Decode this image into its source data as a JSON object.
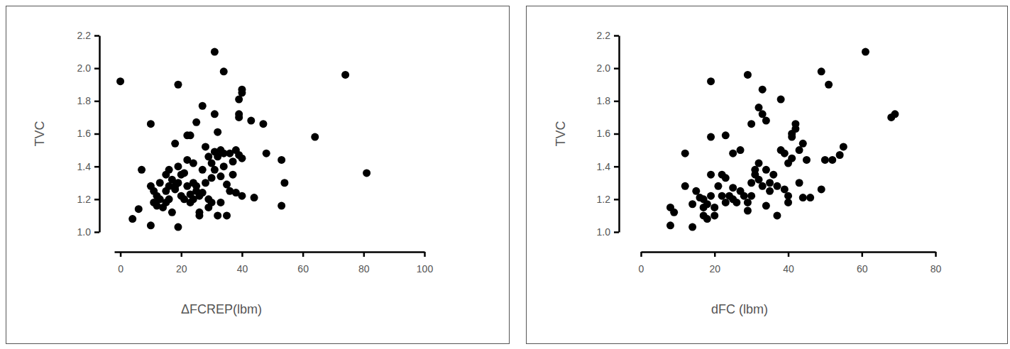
{
  "chart_data": [
    {
      "type": "scatter",
      "x_label": "ΔFCREP(lbm)",
      "y_label": "TVC",
      "color": "#000000",
      "marker": "circle",
      "grid": false,
      "xlim": [
        -2,
        100
      ],
      "xticks": [
        0,
        20,
        40,
        60,
        80,
        100
      ],
      "ylim": [
        1.0,
        2.2
      ],
      "yticks": [
        {
          "value": 1.0,
          "label": "1.0"
        },
        1.2,
        1.4,
        1.6,
        1.8,
        {
          "value": 2.0,
          "label": "2.0"
        },
        2.2
      ],
      "x": [
        0,
        4,
        6,
        7,
        10,
        10,
        10,
        11,
        11,
        12,
        12,
        13,
        13,
        14,
        15,
        15,
        15,
        16,
        16,
        16,
        17,
        17,
        18,
        18,
        18,
        19,
        19,
        19,
        19,
        20,
        20,
        21,
        21,
        22,
        22,
        22,
        23,
        23,
        23,
        24,
        24,
        24,
        25,
        25,
        25,
        26,
        26,
        26,
        27,
        27,
        27,
        28,
        28,
        29,
        29,
        29,
        30,
        30,
        30,
        31,
        31,
        31,
        31,
        32,
        32,
        32,
        33,
        33,
        33,
        34,
        34,
        34,
        35,
        35,
        36,
        36,
        37,
        37,
        38,
        38,
        39,
        39,
        39,
        39,
        40,
        40,
        40,
        40,
        43,
        44,
        47,
        48,
        53,
        53,
        54,
        64,
        74,
        81
      ],
      "values": [
        1.92,
        1.08,
        1.14,
        1.38,
        1.04,
        1.66,
        1.28,
        1.25,
        1.18,
        1.16,
        1.22,
        1.2,
        1.3,
        1.15,
        1.35,
        1.25,
        1.18,
        1.38,
        1.28,
        1.2,
        1.12,
        1.32,
        1.54,
        1.28,
        1.26,
        1.4,
        1.03,
        1.9,
        1.3,
        1.22,
        1.35,
        1.36,
        1.2,
        1.28,
        1.44,
        1.59,
        1.59,
        1.23,
        1.18,
        1.42,
        1.3,
        1.2,
        1.25,
        1.67,
        1.28,
        1.22,
        1.12,
        1.1,
        1.77,
        1.24,
        1.38,
        1.52,
        1.3,
        1.46,
        1.2,
        1.15,
        1.42,
        1.33,
        1.18,
        1.72,
        2.1,
        1.49,
        1.38,
        1.61,
        1.46,
        1.1,
        1.5,
        1.34,
        1.18,
        1.98,
        1.48,
        1.4,
        1.1,
        1.29,
        1.48,
        1.25,
        1.43,
        1.35,
        1.5,
        1.24,
        1.72,
        1.81,
        1.47,
        1.7,
        1.85,
        1.22,
        1.45,
        1.87,
        1.68,
        1.21,
        1.66,
        1.48,
        1.44,
        1.16,
        1.3,
        1.58,
        1.96,
        1.36
      ]
    },
    {
      "type": "scatter",
      "x_label": "dFC (lbm)",
      "y_label": "TVC",
      "color": "#000000",
      "marker": "circle",
      "grid": false,
      "xlim": [
        0,
        80
      ],
      "xticks": [
        0,
        20,
        40,
        60,
        80
      ],
      "ylim": [
        1.0,
        2.2
      ],
      "yticks": [
        {
          "value": 1.0,
          "label": "1.0"
        },
        1.2,
        1.4,
        1.6,
        1.8,
        {
          "value": 2.0,
          "label": "2.0"
        },
        2.2
      ],
      "x": [
        8,
        8,
        9,
        12,
        12,
        14,
        14,
        15,
        16,
        17,
        17,
        17,
        18,
        18,
        19,
        19,
        19,
        19,
        20,
        20,
        21,
        22,
        22,
        23,
        23,
        23,
        24,
        25,
        25,
        25,
        26,
        27,
        27,
        28,
        29,
        29,
        29,
        30,
        30,
        30,
        31,
        31,
        32,
        32,
        32,
        33,
        33,
        33,
        34,
        34,
        34,
        35,
        35,
        36,
        37,
        37,
        38,
        38,
        39,
        39,
        40,
        40,
        40,
        41,
        41,
        41,
        42,
        42,
        43,
        43,
        44,
        44,
        45,
        46,
        49,
        49,
        50,
        51,
        52,
        54,
        55,
        61,
        68,
        69
      ],
      "values": [
        1.04,
        1.15,
        1.12,
        1.48,
        1.28,
        1.03,
        1.17,
        1.25,
        1.21,
        1.1,
        1.15,
        1.2,
        1.08,
        1.17,
        1.92,
        1.58,
        1.35,
        1.22,
        1.1,
        1.15,
        1.28,
        1.35,
        1.22,
        1.59,
        1.33,
        1.18,
        1.22,
        1.48,
        1.27,
        1.2,
        1.18,
        1.5,
        1.25,
        1.22,
        1.96,
        1.18,
        1.13,
        1.66,
        1.3,
        1.22,
        1.38,
        1.35,
        1.76,
        1.42,
        1.32,
        1.87,
        1.72,
        1.28,
        1.68,
        1.38,
        1.16,
        1.3,
        1.25,
        1.35,
        1.1,
        1.28,
        1.81,
        1.5,
        1.48,
        1.26,
        1.42,
        1.22,
        1.18,
        1.6,
        1.58,
        1.45,
        1.66,
        1.63,
        1.5,
        1.3,
        1.54,
        1.21,
        1.44,
        1.21,
        1.98,
        1.26,
        1.44,
        1.9,
        1.44,
        1.47,
        1.52,
        2.1,
        1.7,
        1.72
      ]
    }
  ]
}
